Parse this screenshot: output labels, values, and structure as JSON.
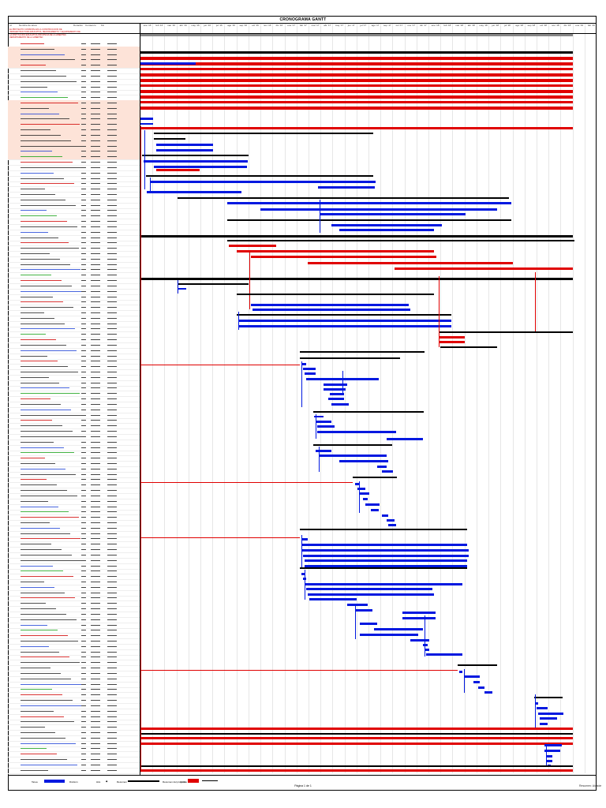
{
  "document": {
    "title": "CRONOGRAMA GANTT",
    "page_label": "Página 1 de 1",
    "footer_right": "Resumen: Alcalde"
  },
  "colors": {
    "critical": "#e00000",
    "task": "#0018e0",
    "summary": "#000000",
    "link_red": "#d00000",
    "link_blue": "#0018e0",
    "row_highlight": "#fde3d8",
    "name_red": "#d00000",
    "name_blue": "#1a3fd6",
    "name_green": "#14a014"
  },
  "header": {
    "col_id": "Id",
    "col_name": "Nombre de tarea",
    "col_duration": "Duración",
    "col_start": "Comienzo",
    "col_finish": "Fin",
    "intro_text": "EL PROYECTO CONSISTE EN LA CONSTRUCCION DE INFRAESTRUCTURA EDUCATIVA, MEJORAMIENTO Y EQUIPAMIENTO DE LA INSTITUCION EDUCATIVA PROVINCIA DE LA LIBERTAD, DEPARTAMENTO DE LA LIBERTAD"
  },
  "timeline_labels": [
    "ene '16",
    "feb '16",
    "mar '16",
    "abr '16",
    "may '16",
    "jun '16",
    "jul '16",
    "ago '16",
    "sep '16",
    "oct '16",
    "nov '16",
    "dic '16",
    "ene '17",
    "feb '17",
    "mar '17",
    "abr '17",
    "may '17",
    "jun '17",
    "jul '17",
    "ago '17",
    "sep '17",
    "oct '17",
    "nov '17",
    "dic '17",
    "ene '18",
    "feb '18",
    "mar '18",
    "abr '18",
    "may '18",
    "jun '18",
    "jul '18",
    "ago '18",
    "sep '18",
    "oct '18",
    "nov '18",
    "dic '18",
    "ene '19",
    "feb '19"
  ],
  "legend": {
    "task": "Tarea",
    "split": "División",
    "milestone": "Hito",
    "summary": "Resumen",
    "project_summary": "Resumen del proyecto",
    "critical": "Crítica",
    "progress": "Progreso"
  }
}
